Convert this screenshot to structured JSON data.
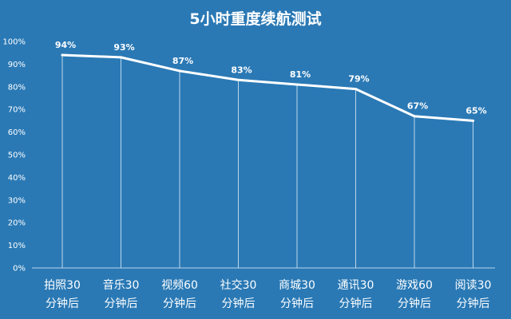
{
  "chart_data": {
    "type": "line",
    "title": "5小时重度续航测试",
    "categories": [
      "拍照30分钟后",
      "音乐30分钟后",
      "视频60分钟后",
      "社交30分钟后",
      "商城30分钟后",
      "通讯30分钟后",
      "游戏60分钟后",
      "阅读30分钟后"
    ],
    "category_lines": [
      [
        "拍照30",
        "分钟后"
      ],
      [
        "音乐30",
        "分钟后"
      ],
      [
        "视频60",
        "分钟后"
      ],
      [
        "社交30",
        "分钟后"
      ],
      [
        "商城30",
        "分钟后"
      ],
      [
        "通讯30",
        "分钟后"
      ],
      [
        "游戏60",
        "分钟后"
      ],
      [
        "阅读30",
        "分钟后"
      ]
    ],
    "values": [
      94,
      93,
      87,
      83,
      81,
      79,
      67,
      65
    ],
    "data_labels": [
      "94%",
      "93%",
      "87%",
      "83%",
      "81%",
      "79%",
      "67%",
      "65%"
    ],
    "y_ticks": [
      "0%",
      "10%",
      "20%",
      "30%",
      "40%",
      "50%",
      "60%",
      "70%",
      "80%",
      "90%",
      "100%"
    ],
    "ylim": [
      0,
      100
    ],
    "xlabel": "",
    "ylabel": "",
    "grid": "vertical",
    "legend": "none"
  },
  "colors": {
    "background": "#2a79b5",
    "line": "#ffffff",
    "text": "#ffffff",
    "drop_lines": "#d6e8f5",
    "axis": "#b7d4ea"
  }
}
